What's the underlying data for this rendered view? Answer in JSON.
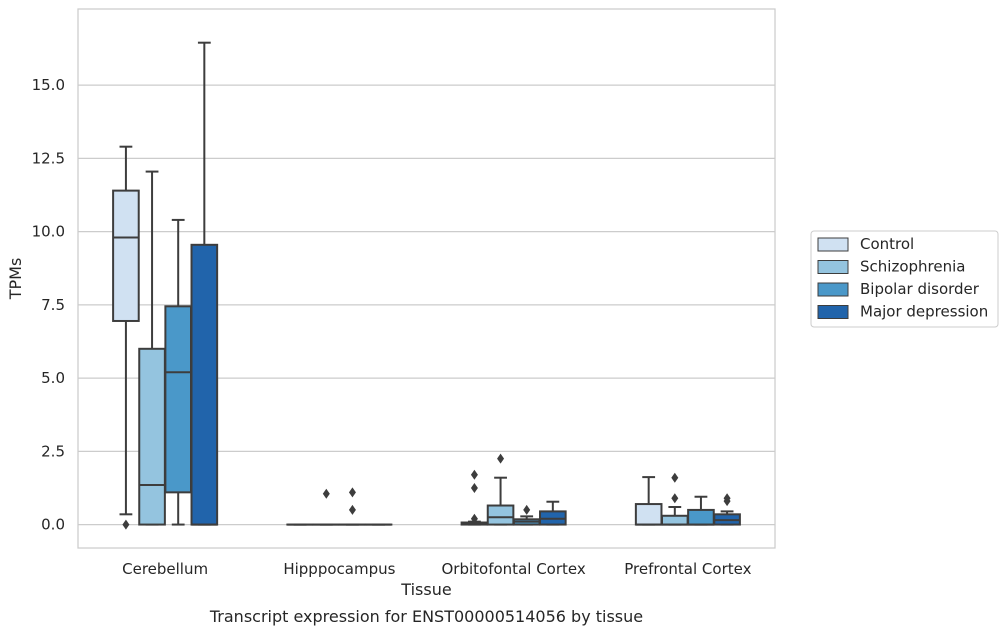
{
  "chart_data": {
    "type": "box",
    "xlabel": "Tissue",
    "ylabel": "TPMs",
    "caption": "Transcript expression for ENST00000514056 by tissue",
    "ylim": [
      -0.8,
      17.6
    ],
    "yticks": [
      0.0,
      2.5,
      5.0,
      7.5,
      10.0,
      12.5,
      15.0
    ],
    "ytick_labels": [
      "0.0",
      "2.5",
      "5.0",
      "7.5",
      "10.0",
      "12.5",
      "15.0"
    ],
    "grid": "horizontal",
    "legend_position": "right",
    "categories": [
      "Cerebellum",
      "Hipppocampus",
      "Orbitofontal Cortex",
      "Prefrontal Cortex"
    ],
    "series": [
      {
        "name": "Control",
        "color": "#d0e1f2",
        "boxes": [
          {
            "whislo": 0.35,
            "q1": 6.95,
            "med": 9.8,
            "q3": 11.4,
            "whishi": 12.9,
            "fliers": [
              0.0
            ]
          },
          {
            "whislo": 0.0,
            "q1": 0.0,
            "med": 0.0,
            "q3": 0.0,
            "whishi": 0.0,
            "fliers": []
          },
          {
            "whislo": 0.0,
            "q1": 0.0,
            "med": 0.03,
            "q3": 0.07,
            "whishi": 0.1,
            "fliers": [
              0.2,
              1.25,
              1.7
            ]
          },
          {
            "whislo": 0.0,
            "q1": 0.0,
            "med": 0.0,
            "q3": 0.7,
            "whishi": 1.62,
            "fliers": []
          }
        ]
      },
      {
        "name": "Schizophrenia",
        "color": "#94c4df",
        "boxes": [
          {
            "whislo": 0.0,
            "q1": 0.0,
            "med": 1.35,
            "q3": 6.0,
            "whishi": 12.05,
            "fliers": []
          },
          {
            "whislo": 0.0,
            "q1": 0.0,
            "med": 0.0,
            "q3": 0.0,
            "whishi": 0.0,
            "fliers": [
              1.05
            ]
          },
          {
            "whislo": 0.0,
            "q1": 0.0,
            "med": 0.25,
            "q3": 0.65,
            "whishi": 1.6,
            "fliers": [
              2.25
            ]
          },
          {
            "whislo": 0.0,
            "q1": 0.0,
            "med": 0.0,
            "q3": 0.3,
            "whishi": 0.6,
            "fliers": [
              0.9,
              1.6
            ]
          }
        ]
      },
      {
        "name": "Bipolar disorder",
        "color": "#4a98c9",
        "boxes": [
          {
            "whislo": 0.0,
            "q1": 1.1,
            "med": 5.2,
            "q3": 7.45,
            "whishi": 10.4,
            "fliers": []
          },
          {
            "whislo": 0.0,
            "q1": 0.0,
            "med": 0.0,
            "q3": 0.0,
            "whishi": 0.0,
            "fliers": [
              0.5,
              1.1
            ]
          },
          {
            "whislo": 0.0,
            "q1": 0.0,
            "med": 0.1,
            "q3": 0.18,
            "whishi": 0.28,
            "fliers": [
              0.5
            ]
          },
          {
            "whislo": 0.0,
            "q1": 0.0,
            "med": 0.0,
            "q3": 0.5,
            "whishi": 0.95,
            "fliers": []
          }
        ]
      },
      {
        "name": "Major depression",
        "color": "#2164ab",
        "boxes": [
          {
            "whislo": 0.0,
            "q1": 0.0,
            "med": 0.0,
            "q3": 9.55,
            "whishi": 16.45,
            "fliers": []
          },
          {
            "whislo": 0.0,
            "q1": 0.0,
            "med": 0.0,
            "q3": 0.0,
            "whishi": 0.0,
            "fliers": []
          },
          {
            "whislo": 0.0,
            "q1": 0.0,
            "med": 0.2,
            "q3": 0.45,
            "whishi": 0.78,
            "fliers": []
          },
          {
            "whislo": 0.0,
            "q1": 0.0,
            "med": 0.15,
            "q3": 0.35,
            "whishi": 0.45,
            "fliers": [
              0.8,
              0.9
            ]
          }
        ]
      }
    ]
  }
}
